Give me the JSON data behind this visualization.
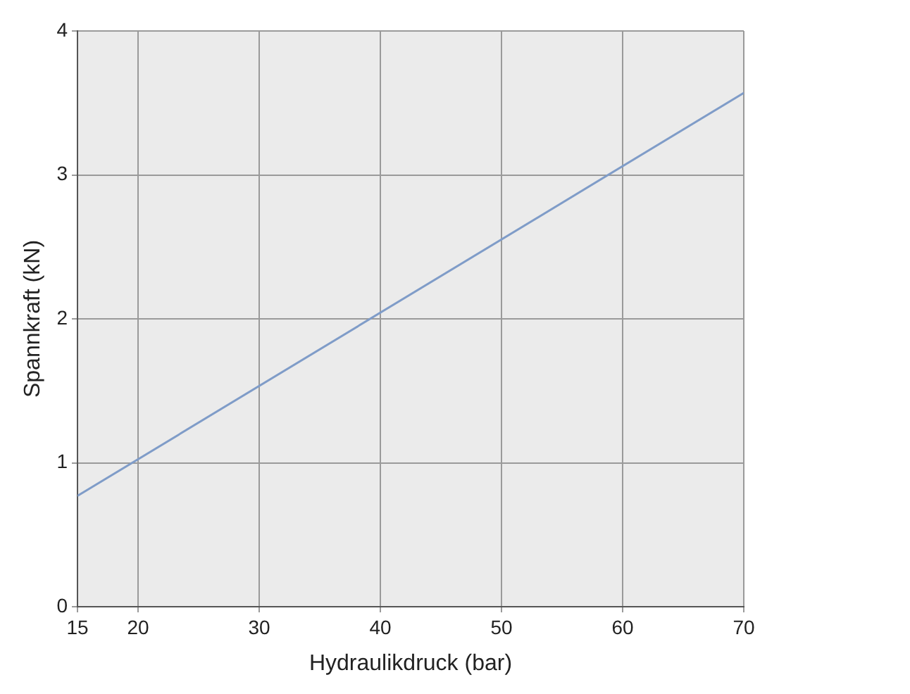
{
  "chart_data": {
    "type": "line",
    "xlabel": "Hydraulikdruck (bar)",
    "ylabel": "Spannkraft (kN)",
    "x": [
      15,
      70
    ],
    "series": [
      {
        "color": "#7f9cc8",
        "values": [
          0.77,
          3.57
        ]
      }
    ],
    "xlim": [
      15,
      70
    ],
    "xticks": [
      15,
      20,
      30,
      40,
      50,
      60,
      70
    ],
    "ylim": [
      0,
      4
    ],
    "yticks": [
      0,
      1,
      2,
      3,
      4
    ],
    "grid": true,
    "legend": false,
    "marker": "none",
    "line_style": "solid"
  }
}
